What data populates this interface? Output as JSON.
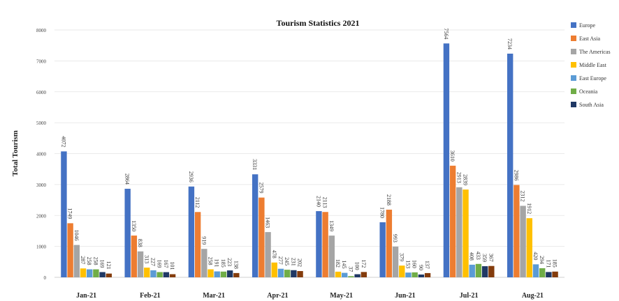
{
  "chart_data": {
    "type": "bar",
    "title": "Tourism Statistics 2021",
    "ylabel": "Total Tourism",
    "xlabel": "",
    "ylim": [
      0,
      8000
    ],
    "yticks": [
      0,
      1000,
      2000,
      3000,
      4000,
      5000,
      6000,
      7000,
      8000
    ],
    "grid": true,
    "legend_position": "right",
    "categories": [
      "Jan-21",
      "Feb-21",
      "Mar-21",
      "Apr-21",
      "May-21",
      "Jun-21",
      "Jul-21",
      "Aug-21"
    ],
    "series": [
      {
        "name": "Europe",
        "color": "#4472C4",
        "values": [
          4072,
          2864,
          2936,
          3331,
          2140,
          1780,
          7564,
          7234
        ]
      },
      {
        "name": "East Asia",
        "color": "#ED7D31",
        "values": [
          1749,
          1350,
          2112,
          2579,
          2113,
          2188,
          3610,
          2986
        ]
      },
      {
        "name": "The Americas",
        "color": "#A5A5A5",
        "values": [
          1046,
          838,
          919,
          1463,
          1349,
          993,
          2913,
          2312
        ]
      },
      {
        "name": "Middle East",
        "color": "#FFC000",
        "values": [
          287,
          313,
          258,
          478,
          182,
          379,
          2839,
          1912
        ]
      },
      {
        "name": "East Europe",
        "color": "#5B9BD5",
        "values": [
          258,
          227,
          191,
          277,
          145,
          153,
          408,
          420
        ]
      },
      {
        "name": "Oceania",
        "color": "#70AD47",
        "values": [
          258,
          169,
          185,
          245,
          37,
          160,
          433,
          294
        ]
      },
      {
        "name": "South Asia",
        "color": "#1F3864",
        "values": [
          169,
          167,
          223,
          231,
          100,
          90,
          359,
          171
        ]
      },
      {
        "name": "",
        "color": "#843C0C",
        "values": [
          121,
          101,
          138,
          202,
          172,
          137,
          367,
          185
        ]
      }
    ]
  }
}
